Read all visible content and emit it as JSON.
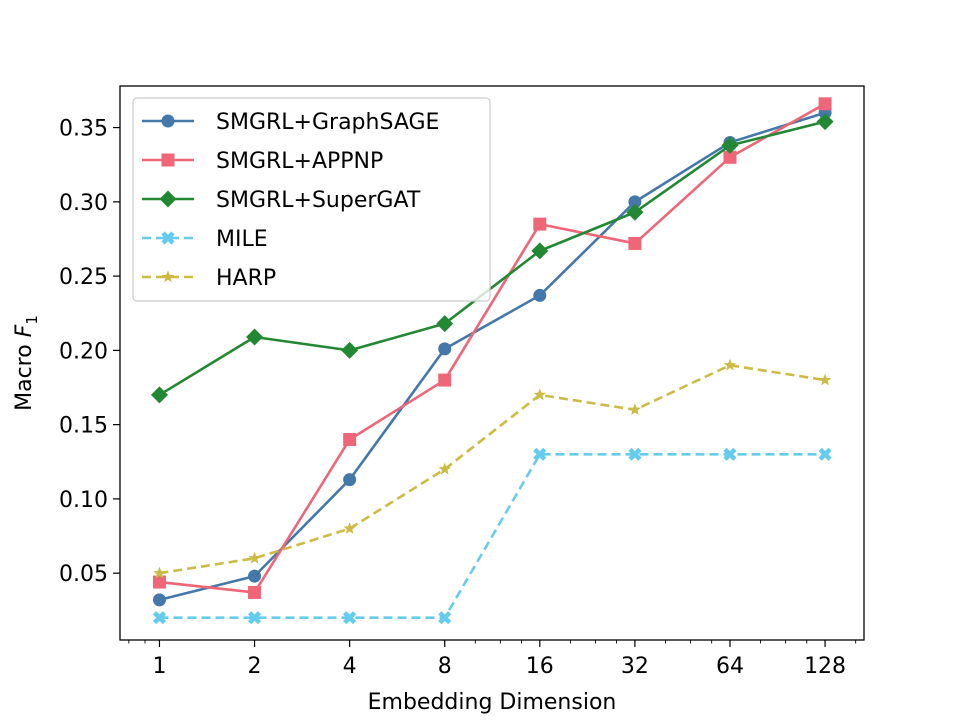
{
  "chart_data": {
    "type": "line",
    "title": "",
    "xlabel": "Embedding Dimension",
    "ylabel_prefix": "Macro ",
    "ylabel_var": "F",
    "ylabel_sub": "1",
    "x_scale": "log2",
    "categories": [
      "1",
      "2",
      "4",
      "8",
      "16",
      "32",
      "64",
      "128"
    ],
    "x": [
      1,
      2,
      4,
      8,
      16,
      32,
      64,
      128
    ],
    "xlim": [
      0.75,
      170
    ],
    "ylim": [
      0.005,
      0.378
    ],
    "yticks": [
      0.05,
      0.1,
      0.15,
      0.2,
      0.25,
      0.3,
      0.35
    ],
    "ytick_labels": [
      "0.05",
      "0.10",
      "0.15",
      "0.20",
      "0.25",
      "0.30",
      "0.35"
    ],
    "legend_position": "upper-left",
    "grid": false,
    "series": [
      {
        "name": "SMGRL+GraphSAGE",
        "color": "#4477aa",
        "line": "solid",
        "marker": "circle",
        "values": [
          0.032,
          0.048,
          0.113,
          0.201,
          0.237,
          0.3,
          0.34,
          0.36
        ]
      },
      {
        "name": "SMGRL+APPNP",
        "color": "#ee6677",
        "line": "solid",
        "marker": "square",
        "values": [
          0.044,
          0.037,
          0.14,
          0.18,
          0.285,
          0.272,
          0.33,
          0.366
        ]
      },
      {
        "name": "SMGRL+SuperGAT",
        "color": "#228833",
        "line": "solid",
        "marker": "diamond",
        "values": [
          0.17,
          0.209,
          0.2,
          0.218,
          0.267,
          0.293,
          0.338,
          0.354
        ]
      },
      {
        "name": "MILE",
        "color": "#66ccee",
        "line": "dashed",
        "marker": "x-filled",
        "values": [
          0.02,
          0.02,
          0.02,
          0.02,
          0.13,
          0.13,
          0.13,
          0.13
        ]
      },
      {
        "name": "HARP",
        "color": "#ccbb44",
        "line": "dashed",
        "marker": "star",
        "values": [
          0.05,
          0.06,
          0.08,
          0.12,
          0.17,
          0.16,
          0.19,
          0.18
        ]
      }
    ]
  }
}
